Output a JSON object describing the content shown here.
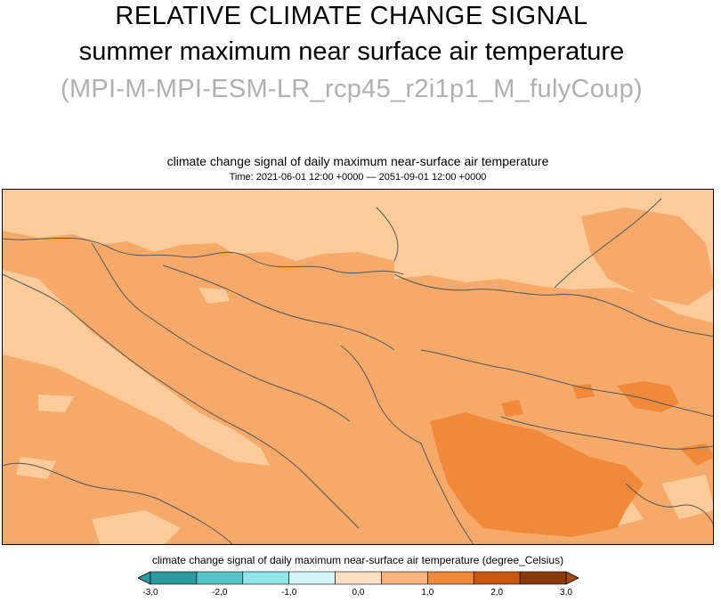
{
  "header": {
    "line1": "RELATIVE CLIMATE CHANGE SIGNAL",
    "line2_bold": "summer",
    "line2_rest": " maximum near surface air temperature",
    "line3": "(MPI-M-MPI-ESM-LR_rcp45_r2i1p1_M_fulyCoup)"
  },
  "plot": {
    "title": "climate change signal of daily maximum near-surface air temperature",
    "time": "Time: 2021-06-01 12:00 +0000 — 2051-09-01 12:00 +0000"
  },
  "colorbar": {
    "title": "climate change signal of daily maximum near-surface air temperature (degree_Celsius)",
    "ticks": [
      "-3,0",
      "-2,0",
      "-1,0",
      "0,0",
      "1,0",
      "2,0",
      "3,0"
    ],
    "colors": [
      "#2a9ba0",
      "#52c3c9",
      "#8fe6ea",
      "#d2f6f8",
      "#fde0c4",
      "#f9b27a",
      "#f08a3a",
      "#c8560e",
      "#8b3a0b"
    ],
    "under_color": "#2a9ba0",
    "over_color": "#a54a12"
  },
  "map": {
    "colors": {
      "light": "#fccb9a",
      "medium": "#f5aa6a",
      "dark": "#f08a3a",
      "border": "#555555"
    }
  }
}
